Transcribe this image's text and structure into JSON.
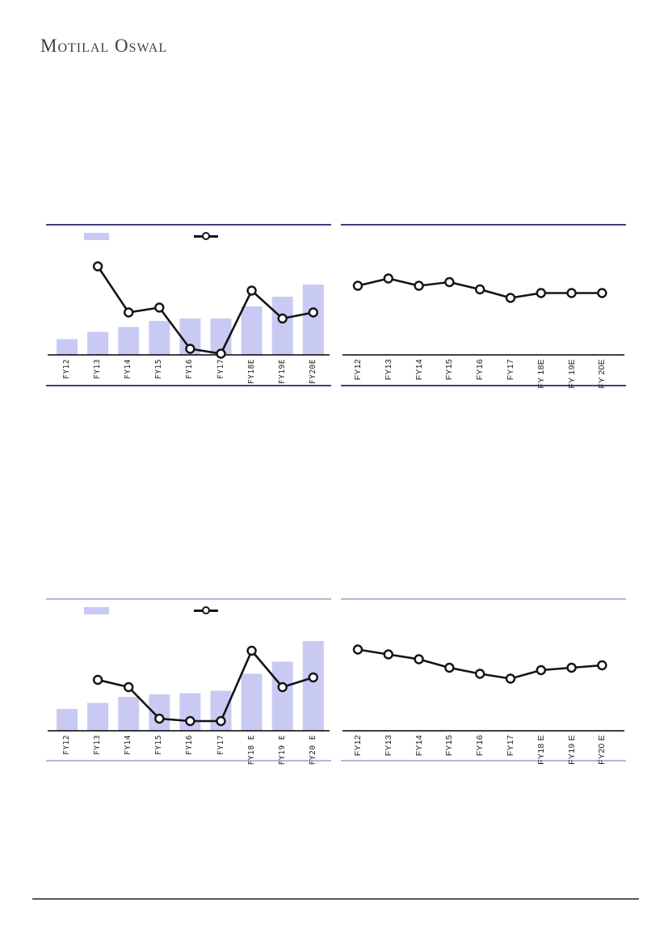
{
  "header": {
    "logo_text": "Motilal Oswal"
  },
  "colors": {
    "bar_fill": "#c9caf4",
    "line_stroke": "#141414",
    "marker_fill": "#ffffff",
    "top_row_border": "#41417f",
    "bottom_row_border": "#b7b7d6",
    "axis_line": "#000000",
    "label_text": "#1f1f1f",
    "logo_text": "#3d3d3d",
    "footer_rule": "#58585a"
  },
  "chart_data": [
    {
      "id": "top-left",
      "type": "bar+line",
      "title": "",
      "categories": [
        "FY12",
        "FY13",
        "FY14",
        "FY15",
        "FY16",
        "FY17",
        "FY18E",
        "FY19E",
        "FY20E"
      ],
      "series": [
        {
          "name": "bar-series",
          "type": "bar",
          "values": [
            13,
            19,
            23,
            28,
            30,
            30,
            40,
            48,
            58
          ]
        },
        {
          "name": "line-series",
          "type": "line",
          "values": [
            null,
            73,
            35,
            39,
            5,
            1,
            53,
            30,
            35
          ]
        }
      ],
      "ylim": [
        0,
        100
      ],
      "grid": false,
      "legend": {
        "position": "top",
        "swatches": [
          "bar",
          "line"
        ],
        "text_labels": []
      },
      "note": "no numeric axis labels shown; values estimated as percent of plot height"
    },
    {
      "id": "top-right",
      "type": "line",
      "title": "",
      "categories": [
        "FY12",
        "FY13",
        "FY14",
        "FY15",
        "FY16",
        "FY17",
        "FY 18E",
        "FY 19E",
        "FY 20E"
      ],
      "series": [
        {
          "name": "line-series",
          "type": "line",
          "values": [
            57,
            63,
            57,
            60,
            54,
            47,
            51,
            51,
            51
          ]
        }
      ],
      "ylim": [
        0,
        100
      ],
      "grid": false,
      "legend": {
        "position": "none",
        "swatches": [],
        "text_labels": []
      },
      "note": "no numeric axis labels shown; values estimated as percent of plot height"
    },
    {
      "id": "bottom-left",
      "type": "bar+line",
      "title": "",
      "categories": [
        "FY12",
        "FY13",
        "FY14",
        "FY15",
        "FY16",
        "FY17",
        "FY18 E",
        "FY19 E",
        "FY20 E"
      ],
      "series": [
        {
          "name": "bar-series",
          "type": "bar",
          "values": [
            18,
            23,
            28,
            30,
            31,
            33,
            47,
            57,
            74
          ]
        },
        {
          "name": "line-series",
          "type": "line",
          "values": [
            null,
            42,
            36,
            10,
            8,
            8,
            66,
            36,
            44
          ]
        }
      ],
      "ylim": [
        0,
        100
      ],
      "grid": false,
      "legend": {
        "position": "top",
        "swatches": [
          "bar",
          "line"
        ],
        "text_labels": []
      },
      "note": "no numeric axis labels shown; values estimated as percent of plot height"
    },
    {
      "id": "bottom-right",
      "type": "line",
      "title": "",
      "categories": [
        "FY12",
        "FY13",
        "FY14",
        "FY15",
        "FY16",
        "FY17",
        "FY18 E",
        "FY19 E",
        "FY20 E"
      ],
      "series": [
        {
          "name": "line-series",
          "type": "line",
          "values": [
            67,
            63,
            59,
            52,
            47,
            43,
            50,
            52,
            54
          ]
        }
      ],
      "ylim": [
        0,
        100
      ],
      "grid": false,
      "legend": {
        "position": "none",
        "swatches": [],
        "text_labels": []
      },
      "note": "no numeric axis labels shown; values estimated as percent of plot height"
    }
  ]
}
